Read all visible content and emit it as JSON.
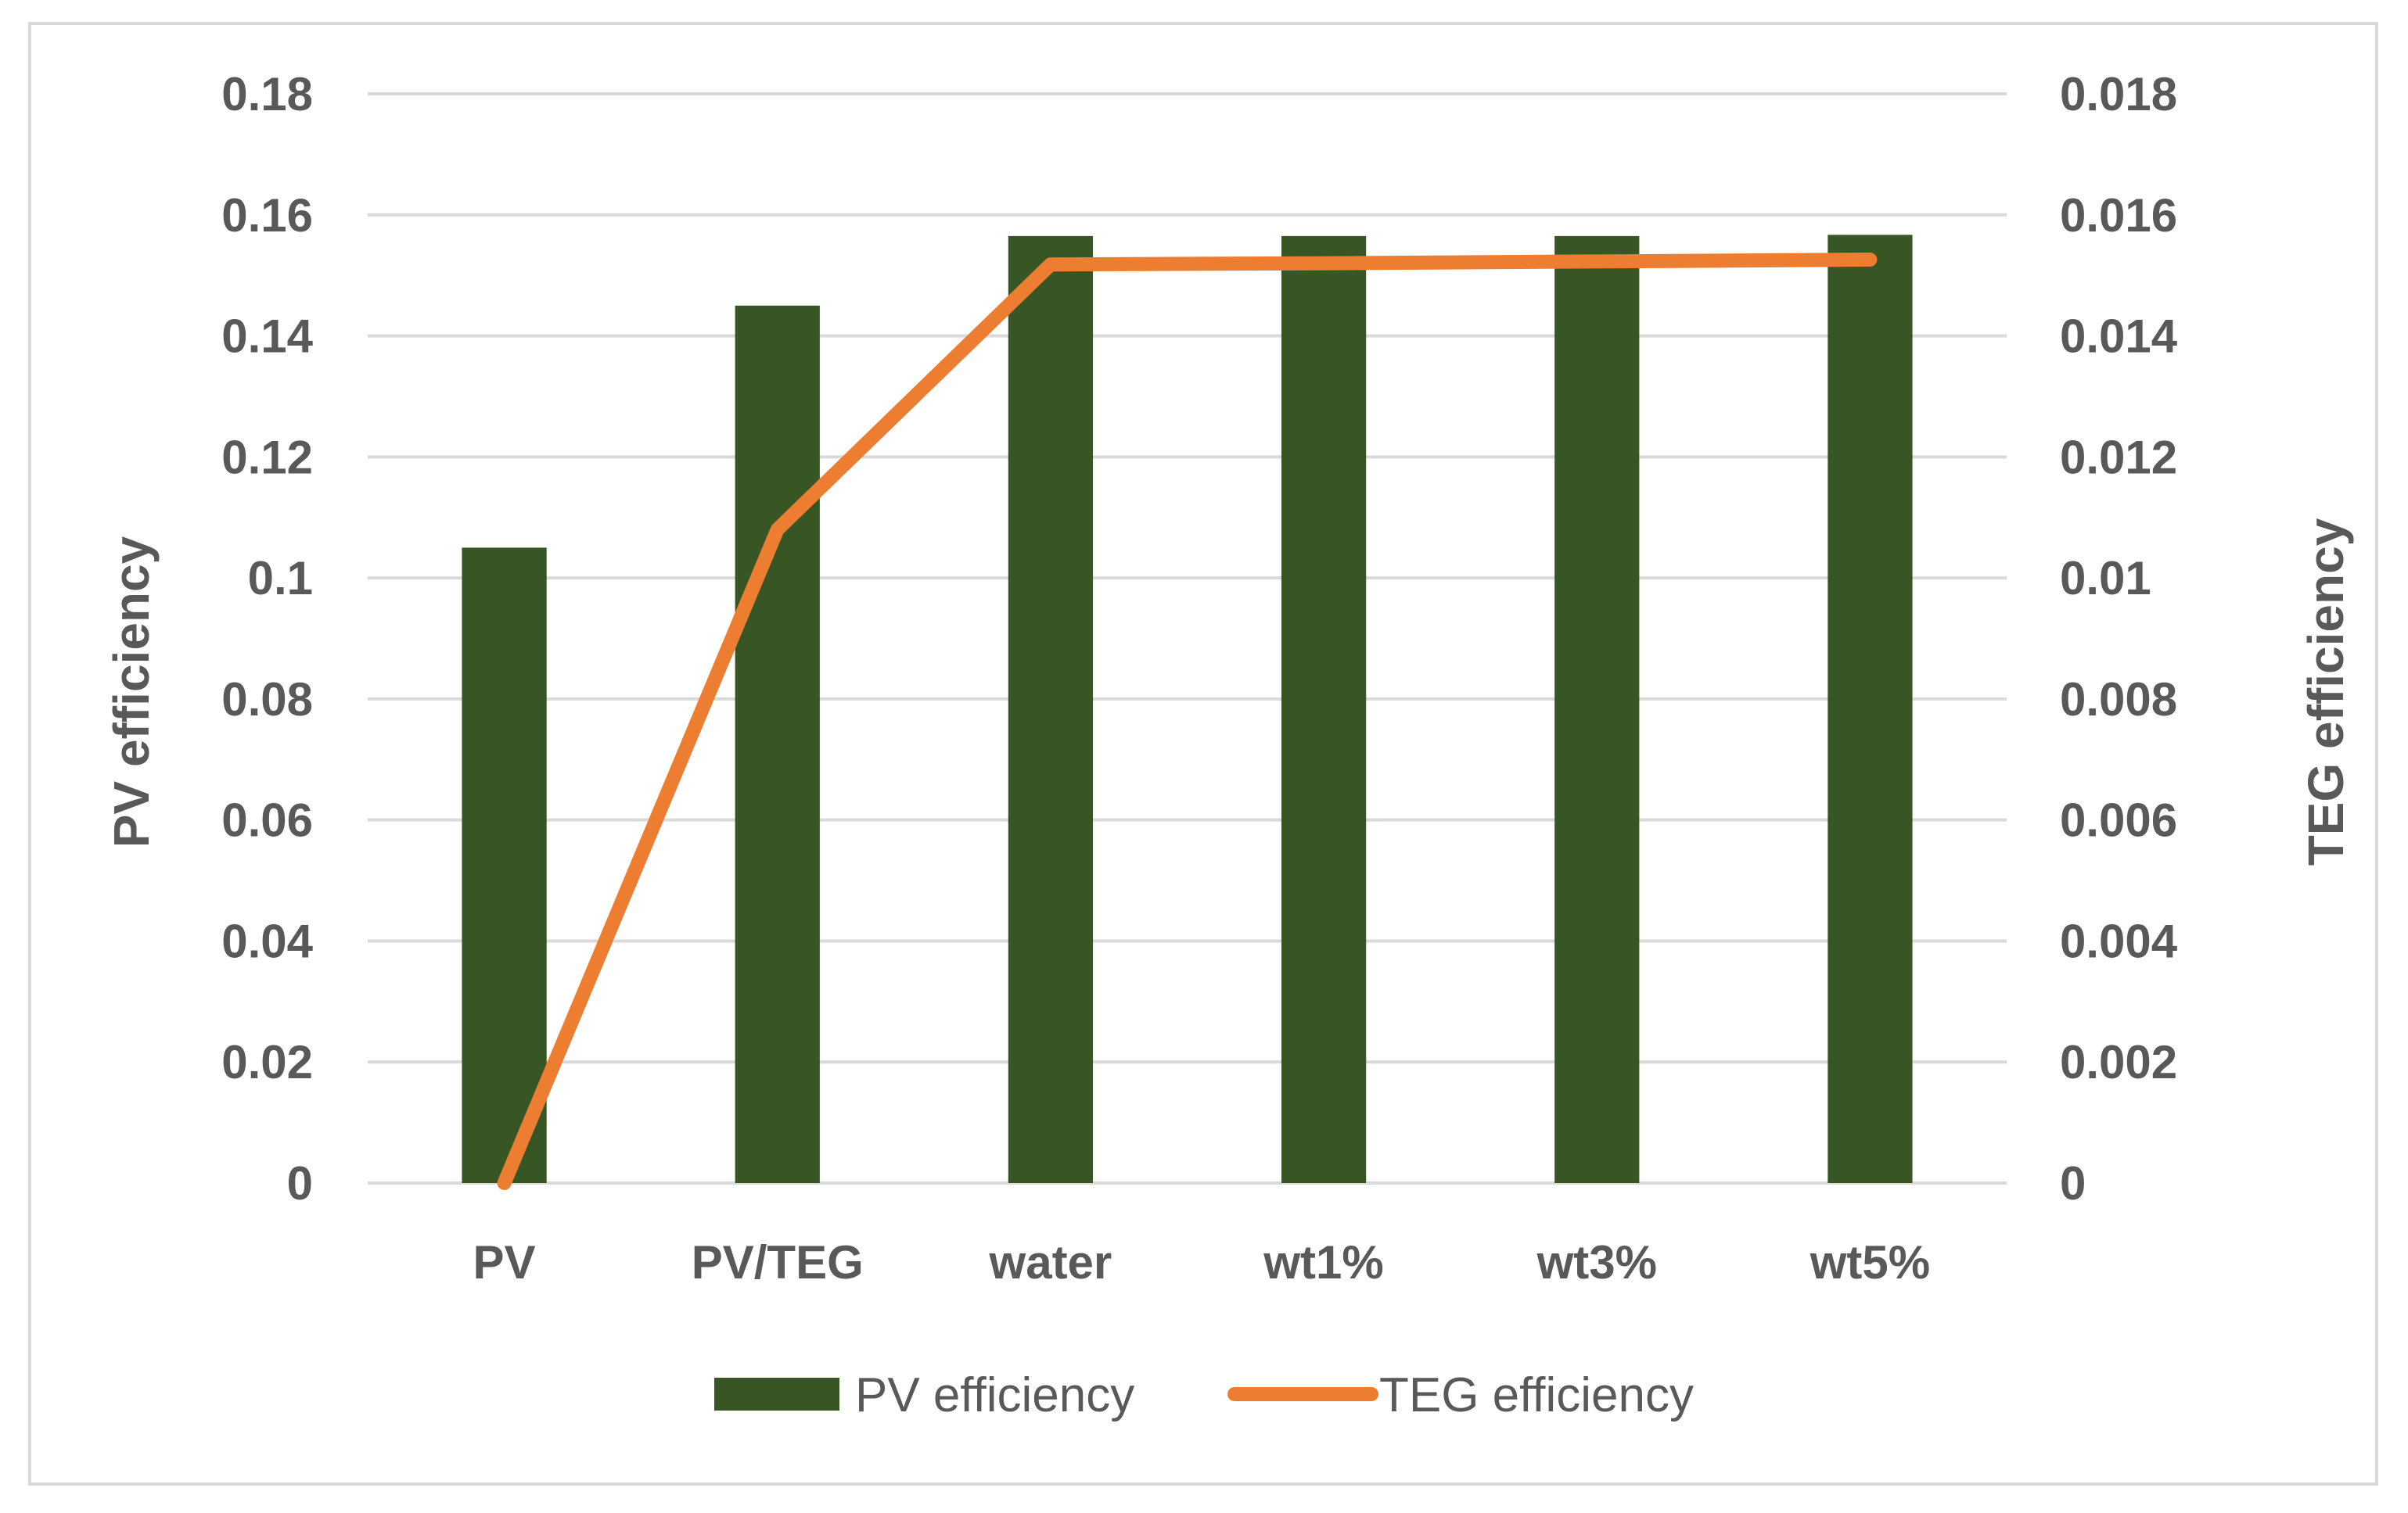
{
  "chart_data": {
    "type": "bar",
    "title": "",
    "categories": [
      "PV",
      "PV/TEG",
      "water",
      "wt1%",
      "wt3%",
      "wt5%"
    ],
    "series": [
      {
        "name": "PV efficiency",
        "type": "bar",
        "axis": "left",
        "color": "#375623",
        "values": [
          0.105,
          0.145,
          0.1565,
          0.1565,
          0.1565,
          0.1567
        ]
      },
      {
        "name": "TEG efficiency",
        "type": "line",
        "axis": "right",
        "color": "#ED7D31",
        "values": [
          0.0,
          0.0108,
          0.01518,
          0.0152,
          0.01523,
          0.01526
        ]
      }
    ],
    "ylabel": "PV efficiency",
    "y2label": "TEG efficiency",
    "xlabel": "",
    "ylim": [
      0,
      0.18
    ],
    "y2lim": [
      0,
      0.018
    ],
    "yticks": [
      "0",
      "0.02",
      "0.04",
      "0.06",
      "0.08",
      "0.1",
      "0.12",
      "0.14",
      "0.16",
      "0.18"
    ],
    "y2ticks": [
      "0",
      "0.002",
      "0.004",
      "0.006",
      "0.008",
      "0.01",
      "0.012",
      "0.014",
      "0.016",
      "0.018"
    ],
    "grid": true,
    "legend_position": "bottom-center"
  }
}
